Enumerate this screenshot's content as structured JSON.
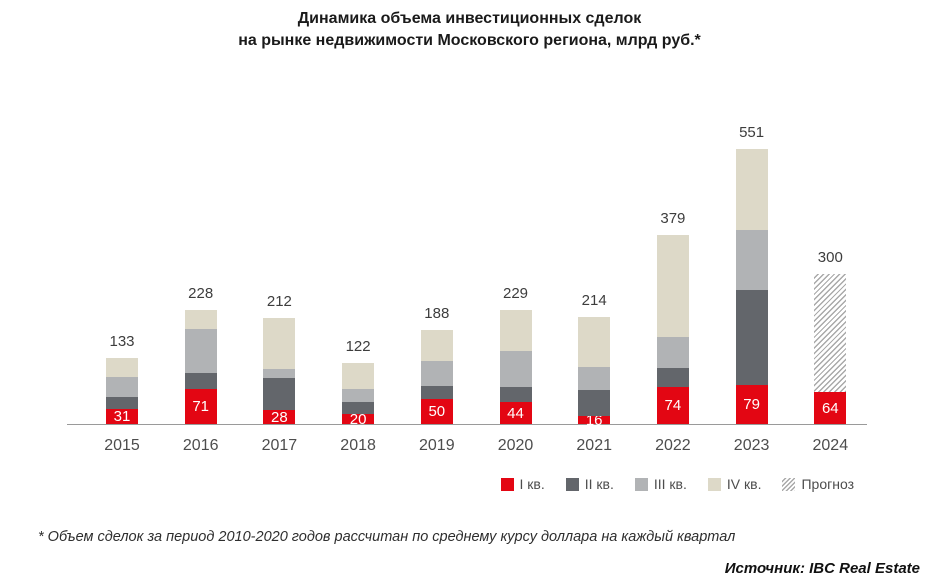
{
  "title": {
    "line1": "Динамика объема инвестиционных сделок",
    "line2": "на рынке недвижимости Московского региона, млрд руб.*"
  },
  "footnote": "* Объем сделок за период 2010-2020 годов рассчитан по среднему курсу доллара на каждый квартал",
  "source": "Источник: IBC Real Estate",
  "chart_data": {
    "type": "bar",
    "stacked": true,
    "title": "Динамика объема инвестиционных сделок на рынке недвижимости Московского региона, млрд руб.",
    "unit": "млрд руб.",
    "categories": [
      "2015",
      "2016",
      "2017",
      "2018",
      "2019",
      "2020",
      "2021",
      "2022",
      "2023",
      "2024"
    ],
    "totals": [
      133,
      228,
      212,
      122,
      188,
      229,
      214,
      379,
      551,
      300
    ],
    "q1_bar_labels": [
      31,
      71,
      28,
      20,
      50,
      44,
      16,
      74,
      79,
      64
    ],
    "series": [
      {
        "name": "I кв.",
        "color": "#e30613",
        "pattern": "solid",
        "values": [
          31,
          71,
          28,
          20,
          50,
          44,
          16,
          74,
          79,
          64
        ]
      },
      {
        "name": "II кв.",
        "color": "#63666b",
        "pattern": "solid",
        "values": [
          24,
          31,
          64,
          24,
          26,
          30,
          53,
          39,
          190,
          0
        ]
      },
      {
        "name": "III кв.",
        "color": "#b1b3b5",
        "pattern": "solid",
        "values": [
          40,
          88,
          18,
          27,
          50,
          73,
          45,
          61,
          120,
          0
        ]
      },
      {
        "name": "IV кв.",
        "color": "#ddd9c8",
        "pattern": "solid",
        "values": [
          38,
          38,
          102,
          51,
          62,
          82,
          100,
          205,
          162,
          0
        ]
      },
      {
        "name": "Прогноз",
        "color": "#a9a9a9",
        "pattern": "diagonal-hatch",
        "values": [
          0,
          0,
          0,
          0,
          0,
          0,
          0,
          0,
          0,
          236
        ]
      }
    ],
    "value_labels": {
      "totals_above_bars": true,
      "q1_labels_inside_bars_white": true
    },
    "legend_position": "bottom-right",
    "grid": false,
    "ylim": [
      0,
      560
    ],
    "axis_color": "#9a9a9a"
  }
}
